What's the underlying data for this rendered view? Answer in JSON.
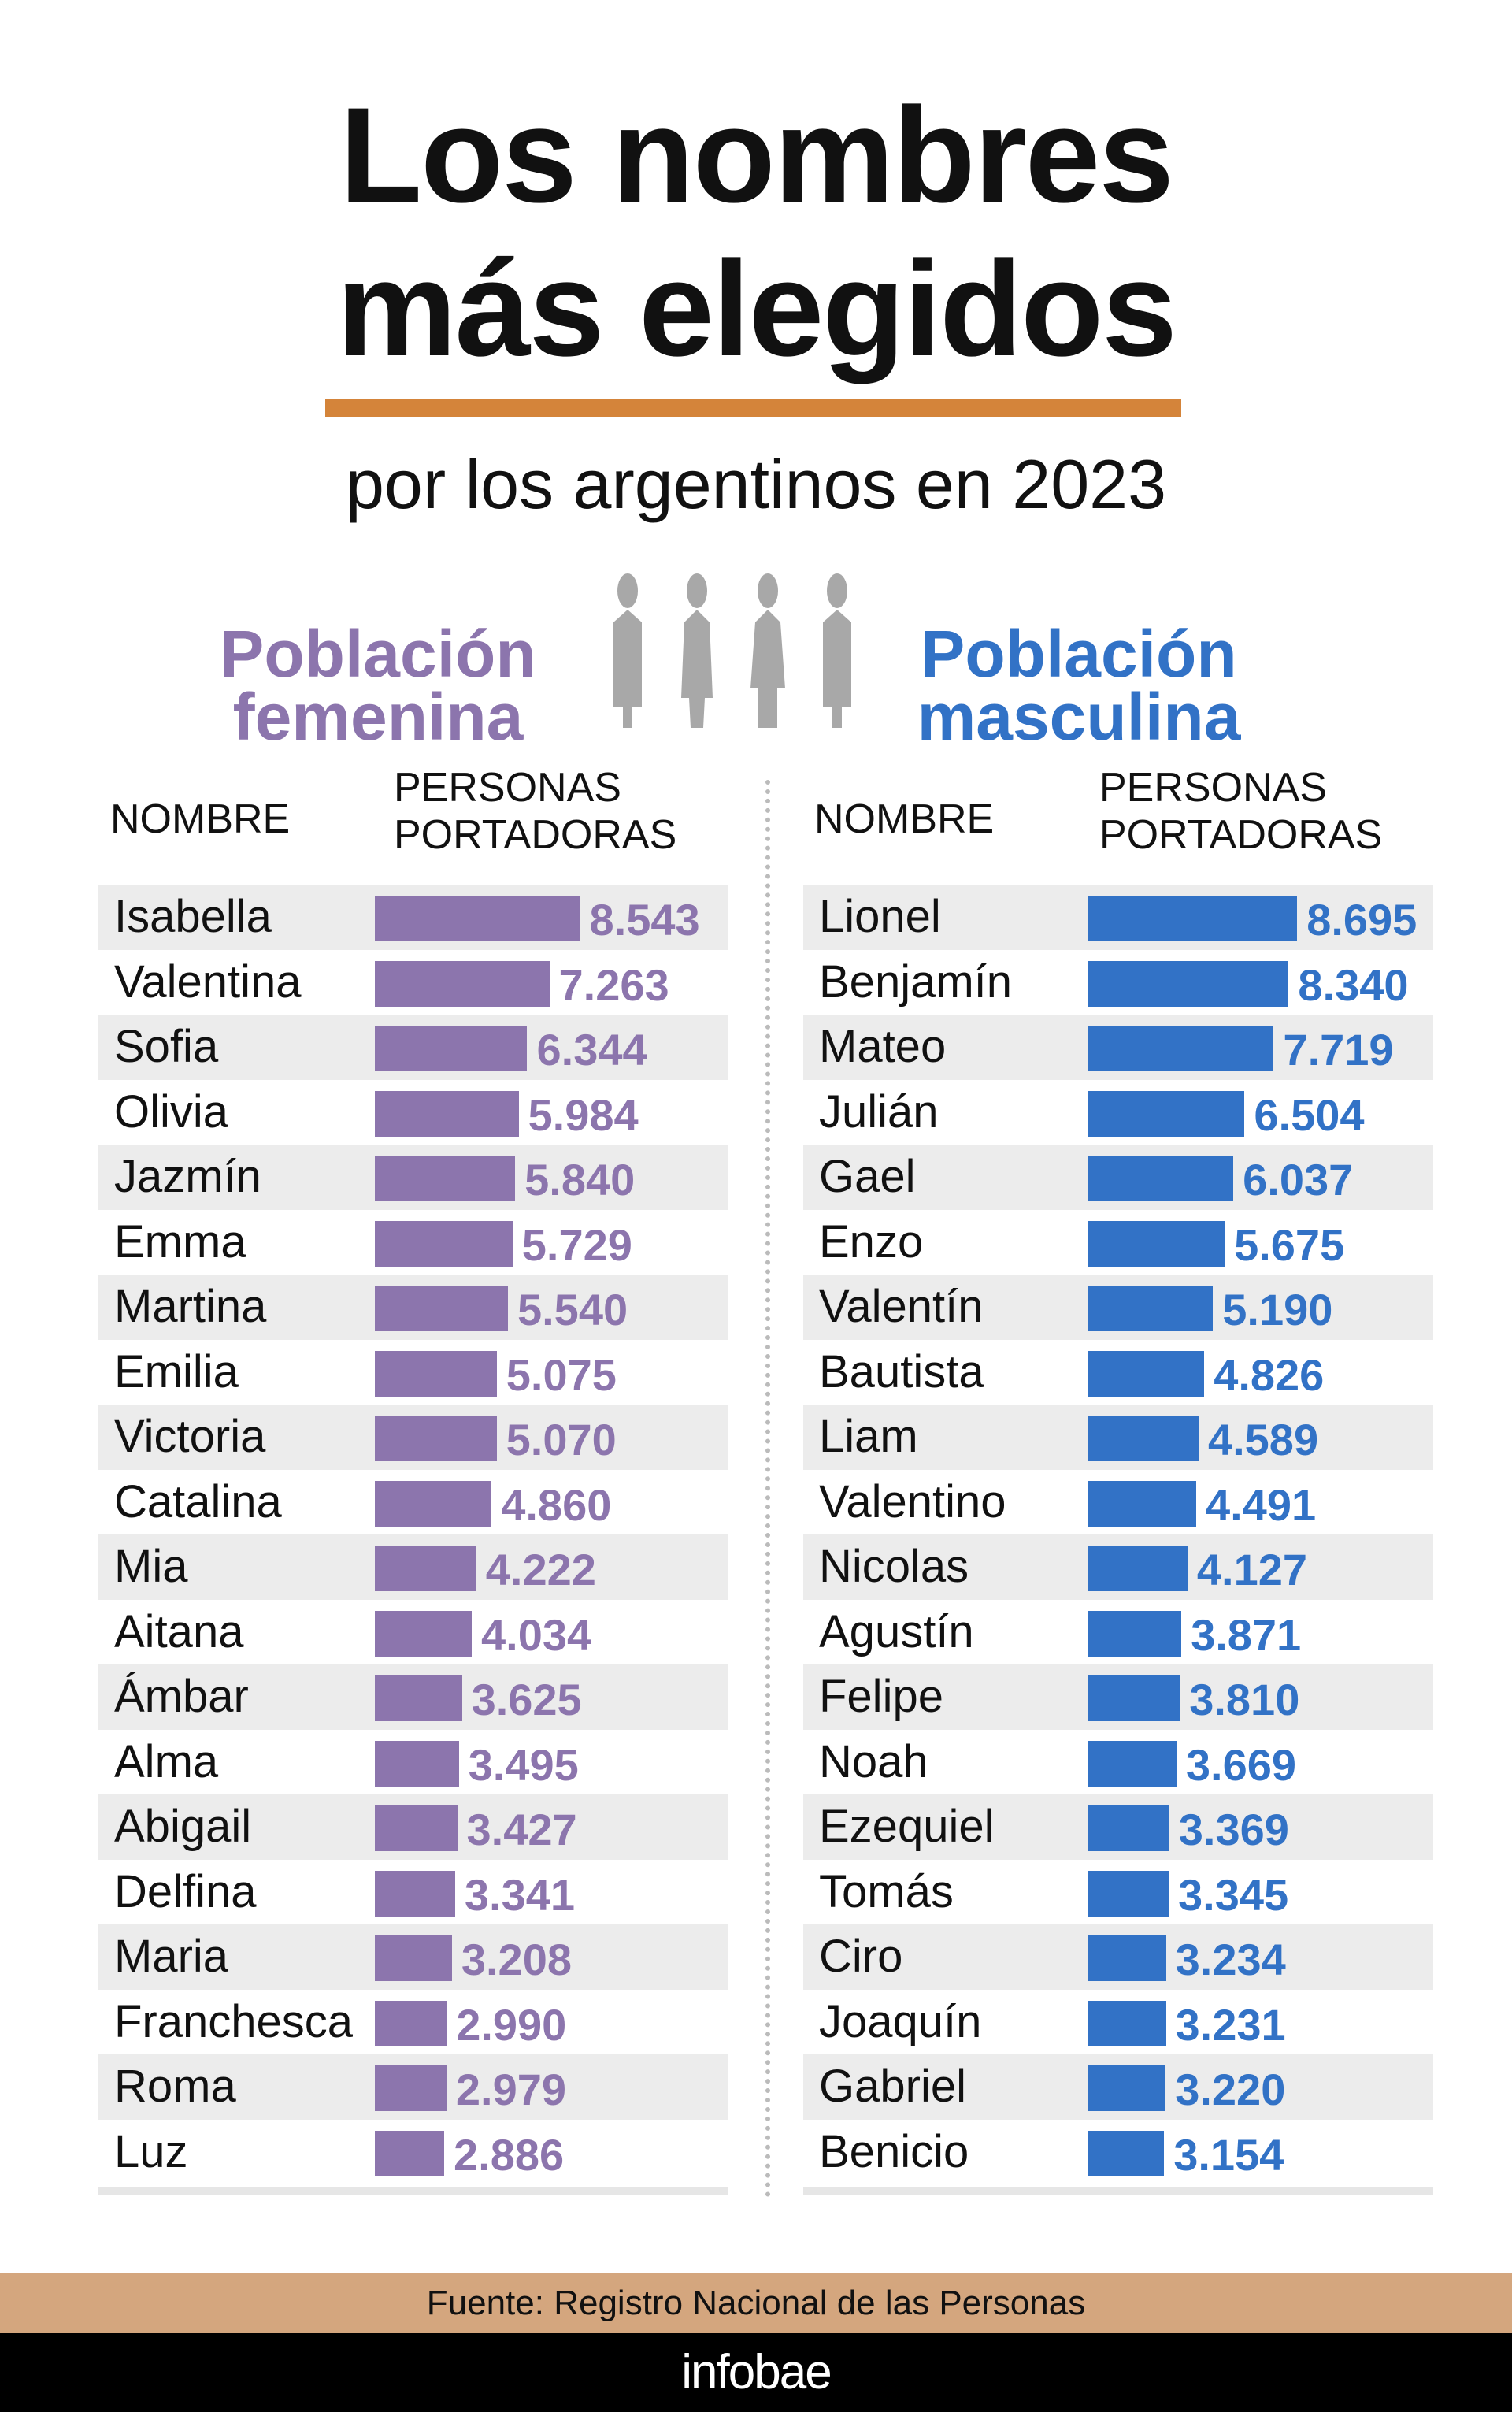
{
  "title_line1": "Los nombres",
  "title_line2": "más elegidos",
  "subtitle": "por los argentinos en 2023",
  "female_header_line1": "Población",
  "female_header_line2": "femenina",
  "male_header_line1": "Población",
  "male_header_line2": "masculina",
  "col_name": "NOMBRE",
  "col_count_line1": "PERSONAS",
  "col_count_line2": "PORTADORAS",
  "source": "Fuente: Registro Nacional de las Personas",
  "brand": "infobae",
  "colors": {
    "female": "#8c75ad",
    "male": "#3272c6",
    "accent": "#d4843a",
    "icon": "#a8a8a8",
    "footer": "#d4a67e"
  },
  "icons": [
    "people-group-icon"
  ],
  "chart_data": [
    {
      "type": "bar",
      "orientation": "horizontal",
      "title": "Población femenina",
      "categories": [
        "Isabella",
        "Valentina",
        "Sofia",
        "Olivia",
        "Jazmín",
        "Emma",
        "Martina",
        "Emilia",
        "Victoria",
        "Catalina",
        "Mia",
        "Aitana",
        "Ámbar",
        "Alma",
        "Abigail",
        "Delfina",
        "Maria",
        "Franchesca",
        "Roma",
        "Luz"
      ],
      "values": [
        8543,
        7263,
        6344,
        5984,
        5840,
        5729,
        5540,
        5075,
        5070,
        4860,
        4222,
        4034,
        3625,
        3495,
        3427,
        3341,
        3208,
        2990,
        2979,
        2886
      ],
      "labels": [
        "8.543",
        "7.263",
        "6.344",
        "5.984",
        "5.840",
        "5.729",
        "5.540",
        "5.075",
        "5.070",
        "4.860",
        "4.222",
        "4.034",
        "3.625",
        "3.495",
        "3.427",
        "3.341",
        "3.208",
        "2.990",
        "2.979",
        "2.886"
      ],
      "color": "#8c75ad"
    },
    {
      "type": "bar",
      "orientation": "horizontal",
      "title": "Población masculina",
      "categories": [
        "Lionel",
        "Benjamín",
        "Mateo",
        "Julián",
        "Gael",
        "Enzo",
        "Valentín",
        "Bautista",
        "Liam",
        "Valentino",
        "Nicolas",
        "Agustín",
        "Felipe",
        "Noah",
        "Ezequiel",
        "Tomás",
        "Ciro",
        "Joaquín",
        "Gabriel",
        "Benicio"
      ],
      "values": [
        8695,
        8340,
        7719,
        6504,
        6037,
        5675,
        5190,
        4826,
        4589,
        4491,
        4127,
        3871,
        3810,
        3669,
        3369,
        3345,
        3234,
        3231,
        3220,
        3154
      ],
      "labels": [
        "8.695",
        "8.340",
        "7.719",
        "6.504",
        "6.037",
        "5.675",
        "5.190",
        "4.826",
        "4.589",
        "4.491",
        "4.127",
        "3.871",
        "3.810",
        "3.669",
        "3.369",
        "3.345",
        "3.234",
        "3.231",
        "3.220",
        "3.154"
      ],
      "color": "#3272c6"
    }
  ]
}
